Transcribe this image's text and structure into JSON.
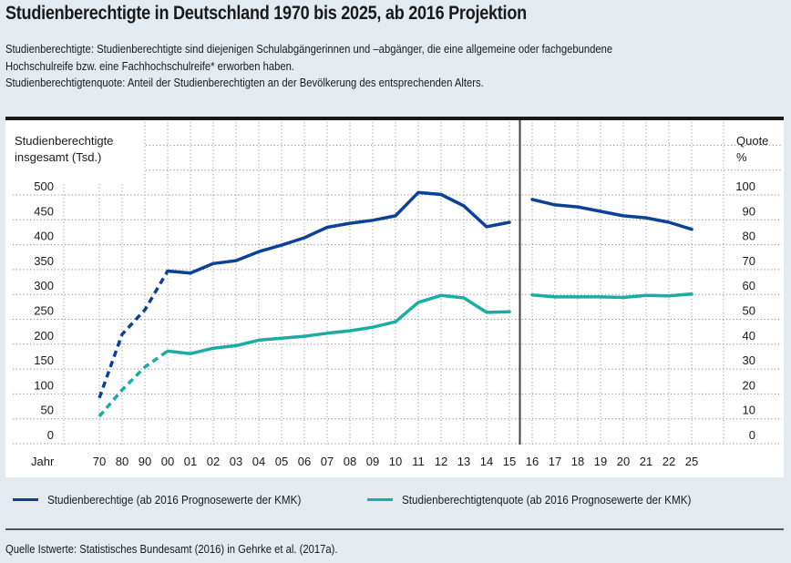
{
  "title": "Studienberechtigte in Deutschland 1970 bis 2025, ab 2016 Projektion",
  "description": [
    "Studienberechtigte: Studienberechtigte sind diejenigen Schulabgängerinnen und –abgänger, die eine allgemeine oder fachgebundene",
    "Hochschulreife bzw. eine Fachhochschulreife* erworben haben.",
    "Studienberechtigtenquote: Anteil der Studienberechtigten an der Bevölkerung des entsprechenden Alters."
  ],
  "colors": {
    "series_total": "#0b4196",
    "series_quote": "#1aada3",
    "background": "#e3ebf1",
    "panel": "#ffffff"
  },
  "legend": [
    {
      "label": "Studienberechtige (ab 2016 Prognosewerte der KMK)",
      "color": "#0b4196"
    },
    {
      "label": "Studienberechtigtenquote (ab 2016 Prognosewerte der KMK)",
      "color": "#1aada3"
    }
  ],
  "source": "Quelle Istwerte: Statistisches Bundesamt (2016) in Gehrke et al. (2017a).",
  "chart_data": {
    "type": "line",
    "title": "Studienberechtigte in Deutschland 1970 bis 2025, ab 2016 Projektion",
    "xlabel": "Jahr",
    "ylabel_left": [
      "Studienberechtigte",
      "insgesamt (Tsd.)"
    ],
    "ylabel_right": [
      "Quote",
      "%"
    ],
    "x": [
      "70",
      "80",
      "90",
      "00",
      "01",
      "02",
      "03",
      "04",
      "05",
      "06",
      "07",
      "08",
      "09",
      "10",
      "11",
      "12",
      "13",
      "14",
      "15",
      "16",
      "17",
      "18",
      "19",
      "20",
      "21",
      "22",
      "25"
    ],
    "left_ticks": [
      "0",
      "50",
      "100",
      "150",
      "200",
      "250",
      "300",
      "350",
      "400",
      "450",
      "500"
    ],
    "right_ticks": [
      "0",
      "10",
      "20",
      "30",
      "40",
      "50",
      "60",
      "70",
      "80",
      "90",
      "100"
    ],
    "ylim_left": [
      0,
      600
    ],
    "ylim_right": [
      0,
      120
    ],
    "grid": true,
    "dashed_until_index": 3,
    "projection_starts_index": 19,
    "legend_position": "bottom",
    "series": [
      {
        "name": "Studienberechtige (ab 2016 Prognosewerte der KMK)",
        "axis": "left",
        "unit": "Tsd.",
        "values": [
          92,
          220,
          269,
          347,
          343,
          362,
          368,
          386,
          399,
          414,
          435,
          443,
          449,
          458,
          505,
          501,
          478,
          436,
          445,
          491,
          480,
          476,
          467,
          458,
          454,
          445,
          431
        ]
      },
      {
        "name": "Studienberechtigtenquote (ab 2016 Prognosewerte der KMK)",
        "axis": "right",
        "unit": "%",
        "values": [
          11,
          21.6,
          30.8,
          37.2,
          36.2,
          38.4,
          39.4,
          41.6,
          42.4,
          43.2,
          44.4,
          45.4,
          46.8,
          49,
          56.8,
          59.6,
          58.6,
          52.8,
          53,
          59.8,
          59,
          59,
          59,
          58.8,
          59.6,
          59.4,
          60.2
        ]
      }
    ]
  }
}
